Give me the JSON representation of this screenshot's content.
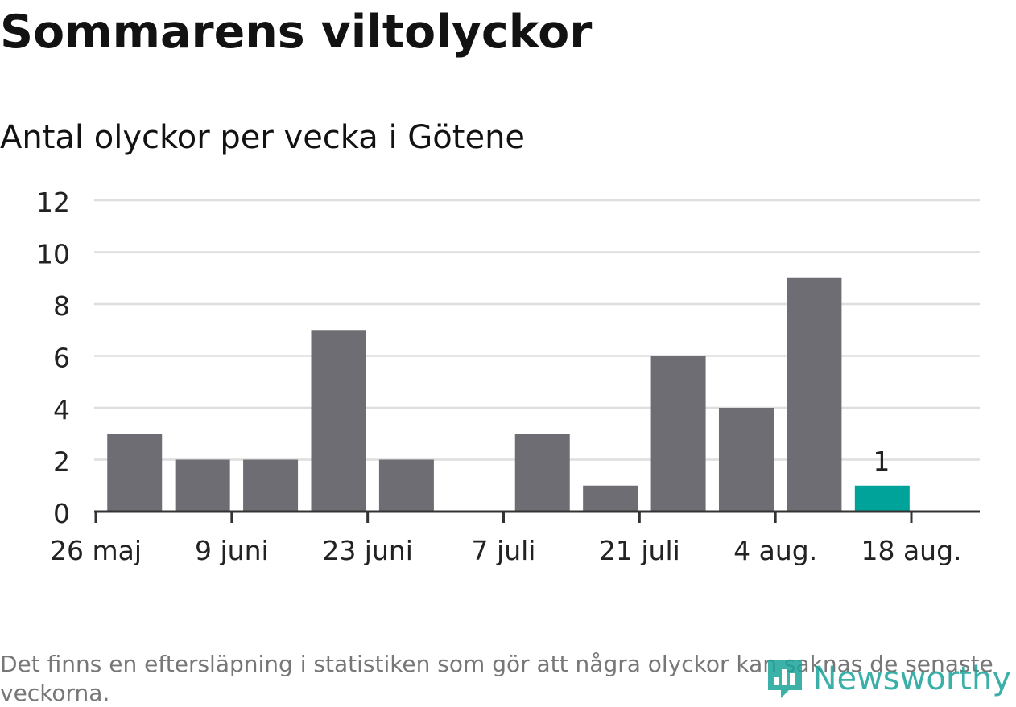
{
  "chart_data": {
    "type": "bar",
    "title": "Sommarens viltolyckor",
    "subtitle": "Antal olyckor per vecka i Götene",
    "x_tick_labels": [
      "26 maj",
      "9 juni",
      "23 juni",
      "7 juli",
      "21 juli",
      "4 aug.",
      "18 aug."
    ],
    "x_tick_dates": [
      "2024-05-26",
      "2024-06-09",
      "2024-06-23",
      "2024-07-07",
      "2024-07-21",
      "2024-08-04",
      "2024-08-18"
    ],
    "y_ticks": [
      "0",
      "2",
      "4",
      "6",
      "8",
      "10",
      "12"
    ],
    "ylim": [
      0,
      12
    ],
    "grid": true,
    "week_start_dates": [
      "2024-05-27",
      "2024-06-03",
      "2024-06-10",
      "2024-06-17",
      "2024-06-24",
      "2024-07-01",
      "2024-07-08",
      "2024-07-15",
      "2024-07-22",
      "2024-07-29",
      "2024-08-05",
      "2024-08-12"
    ],
    "values": [
      3,
      2,
      2,
      7,
      2,
      0,
      3,
      1,
      6,
      4,
      9,
      1
    ],
    "highlighted_index": 11,
    "highlighted_label": "1",
    "colors": {
      "bar": "#6e6d73",
      "highlight": "#00a39a",
      "grid": "#dedede",
      "axis": "#333333"
    }
  },
  "footnote": "Det finns en eftersläpning i statistiken som gör att några olyckor kan saknas de senaste veckorna.",
  "logo": {
    "text": "Newsworthy",
    "icon": "newsworthy-logo-icon"
  }
}
